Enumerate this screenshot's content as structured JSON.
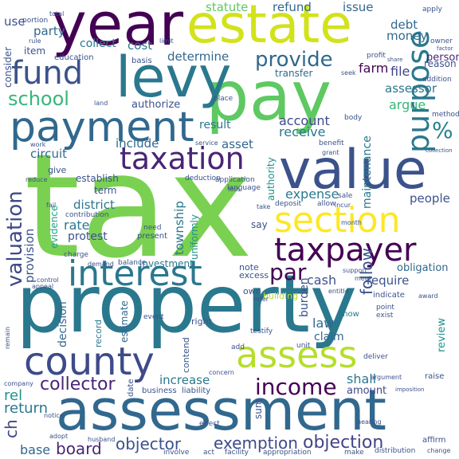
{
  "words": [
    {
      "text": "tax",
      "color": "#7ad151"
    },
    {
      "text": "property",
      "color": "#2a788e"
    },
    {
      "text": "assessment",
      "color": "#31688e"
    },
    {
      "text": "pay",
      "color": "#5ec962"
    },
    {
      "text": "year",
      "color": "#440154"
    },
    {
      "text": "estate",
      "color": "#d2e21b"
    },
    {
      "text": "levy",
      "color": "#2a788e"
    },
    {
      "text": "value",
      "color": "#3b528b"
    },
    {
      "text": "payment",
      "color": "#31688e"
    },
    {
      "text": "taxation",
      "color": "#482576"
    },
    {
      "text": "fund",
      "color": "#3b528b"
    },
    {
      "text": "interest",
      "color": "#2a788e"
    },
    {
      "text": "section",
      "color": "#fde725"
    },
    {
      "text": "county",
      "color": "#3e4a89"
    },
    {
      "text": "assess",
      "color": "#b5de2b"
    },
    {
      "text": "taxpayer",
      "color": "#440154"
    },
    {
      "text": "purpose",
      "color": "#2a788e"
    },
    {
      "text": "income",
      "color": "#440154"
    },
    {
      "text": "school",
      "color": "#35b779"
    },
    {
      "text": "provide",
      "color": "#31688e"
    },
    {
      "text": "%",
      "color": "#26828e"
    },
    {
      "text": "valuation",
      "color": "#3e4a89"
    },
    {
      "text": "par",
      "color": "#440154"
    },
    {
      "text": "collector",
      "color": "#482576"
    },
    {
      "text": "objector",
      "color": "#3b528b"
    },
    {
      "text": "exemption",
      "color": "#3e4a89"
    },
    {
      "text": "board",
      "color": "#482576"
    },
    {
      "text": "objection",
      "color": "#414487"
    },
    {
      "text": "return",
      "color": "#2a788e"
    },
    {
      "text": "base",
      "color": "#31688e"
    },
    {
      "text": "ch",
      "color": "#414487"
    },
    {
      "text": "rel",
      "color": "#21918c"
    },
    {
      "text": "statute",
      "color": "#5ec962"
    },
    {
      "text": "refund",
      "color": "#31688e"
    },
    {
      "text": "issue",
      "color": "#31688e"
    },
    {
      "text": "party",
      "color": "#31688e"
    },
    {
      "text": "collect",
      "color": "#2a788e"
    },
    {
      "text": "cost",
      "color": "#2a788e"
    },
    {
      "text": "determine",
      "color": "#31688e"
    },
    {
      "text": "debt",
      "color": "#31688e"
    },
    {
      "text": "money",
      "color": "#31688e"
    },
    {
      "text": "file",
      "color": "#414487"
    },
    {
      "text": "farm",
      "color": "#440154"
    },
    {
      "text": "assessor",
      "color": "#2a788e"
    },
    {
      "text": "argue",
      "color": "#35b779"
    },
    {
      "text": "person",
      "color": "#482576"
    },
    {
      "text": "account",
      "color": "#3e4a89"
    },
    {
      "text": "receive",
      "color": "#2a788e"
    },
    {
      "text": "asset",
      "color": "#31688e"
    },
    {
      "text": "result",
      "color": "#2a788e"
    },
    {
      "text": "include",
      "color": "#31688e"
    },
    {
      "text": "circuit",
      "color": "#31688e"
    },
    {
      "text": "district",
      "color": "#2a788e"
    },
    {
      "text": "rate",
      "color": "#2a788e"
    },
    {
      "text": "protest",
      "color": "#3b528b"
    },
    {
      "text": "township",
      "color": "#2a788e"
    },
    {
      "text": "expense",
      "color": "#2a788e"
    },
    {
      "text": "people",
      "color": "#3b528b"
    },
    {
      "text": "maintenance",
      "color": "#2a788e"
    },
    {
      "text": "provision",
      "color": "#3b528b"
    },
    {
      "text": "evidence",
      "color": "#20a486"
    },
    {
      "text": "uniformly",
      "color": "#21918c"
    },
    {
      "text": "authority",
      "color": "#21918c"
    },
    {
      "text": "cash",
      "color": "#3b528b"
    },
    {
      "text": "require",
      "color": "#3b528b"
    },
    {
      "text": "burden",
      "color": "#3b528b"
    },
    {
      "text": "law",
      "color": "#31688e"
    },
    {
      "text": "claim",
      "color": "#31688e"
    },
    {
      "text": "follow",
      "color": "#3b528b"
    },
    {
      "text": "review",
      "color": "#21918c"
    },
    {
      "text": "obligation",
      "color": "#31688e"
    },
    {
      "text": "increase",
      "color": "#2a788e"
    },
    {
      "text": "decision",
      "color": "#31688e"
    },
    {
      "text": "estimate",
      "color": "#31688e"
    },
    {
      "text": "shall",
      "color": "#2a788e"
    },
    {
      "text": "amount",
      "color": "#3e4a89"
    },
    {
      "text": "investment",
      "color": "#2a788e"
    },
    {
      "text": "contend",
      "color": "#3b528b"
    },
    {
      "text": "record",
      "color": "#2a788e"
    },
    {
      "text": "right",
      "color": "#3b528b"
    },
    {
      "text": "show",
      "color": "#2a788e"
    },
    {
      "text": "own",
      "color": "#3b528b"
    },
    {
      "text": "building",
      "color": "#b5de2b"
    },
    {
      "text": "excess",
      "color": "#3b528b"
    },
    {
      "text": "note",
      "color": "#3b528b"
    },
    {
      "text": "say",
      "color": "#3b528b"
    },
    {
      "text": "give",
      "color": "#3b528b"
    },
    {
      "text": "term",
      "color": "#3b528b"
    },
    {
      "text": "establish",
      "color": "#3b528b"
    },
    {
      "text": "authorize",
      "color": "#3b528b"
    },
    {
      "text": "transfer",
      "color": "#31688e"
    },
    {
      "text": "education",
      "color": "#3b528b"
    },
    {
      "text": "basis",
      "color": "#3b528b"
    },
    {
      "text": "item",
      "color": "#3b528b"
    },
    {
      "text": "use",
      "color": "#3b528b"
    },
    {
      "text": "consider",
      "color": "#3b528b"
    },
    {
      "text": "business",
      "color": "#3b528b"
    },
    {
      "text": "liability",
      "color": "#3b528b"
    },
    {
      "text": "present",
      "color": "#3b528b"
    },
    {
      "text": "need",
      "color": "#3b528b"
    },
    {
      "text": "contribution",
      "color": "#3b528b"
    },
    {
      "text": "point",
      "color": "#3b528b"
    },
    {
      "text": "exist",
      "color": "#3b528b"
    },
    {
      "text": "indicate",
      "color": "#3b528b"
    },
    {
      "text": "event",
      "color": "#3b528b"
    },
    {
      "text": "sum",
      "color": "#3b528b"
    },
    {
      "text": "date",
      "color": "#3b528b"
    },
    {
      "text": "raise",
      "color": "#3b528b"
    },
    {
      "text": "apply",
      "color": "#3b528b"
    },
    {
      "text": "profit",
      "color": "#3b528b"
    },
    {
      "text": "owner",
      "color": "#3b528b"
    },
    {
      "text": "reason",
      "color": "#3b528b"
    },
    {
      "text": "method",
      "color": "#3b528b"
    },
    {
      "text": "addition",
      "color": "#3b528b"
    },
    {
      "text": "deposit",
      "color": "#3b528b"
    },
    {
      "text": "allow",
      "color": "#3b528b"
    },
    {
      "text": "sale",
      "color": "#3b528b"
    },
    {
      "text": "language",
      "color": "#3b528b"
    },
    {
      "text": "effect",
      "color": "#3b528b"
    },
    {
      "text": "affirm",
      "color": "#3b528b"
    },
    {
      "text": "distribution",
      "color": "#3b528b"
    },
    {
      "text": "act",
      "color": "#3b528b"
    },
    {
      "text": "make",
      "color": "#3b528b"
    },
    {
      "text": "involve",
      "color": "#3b528b"
    },
    {
      "text": "adopt",
      "color": "#3b528b"
    },
    {
      "text": "notice",
      "color": "#3b528b"
    },
    {
      "text": "appropriation",
      "color": "#3b528b"
    },
    {
      "text": "facility",
      "color": "#3b528b"
    },
    {
      "text": "hearing",
      "color": "#3b528b"
    },
    {
      "text": "husband",
      "color": "#3b528b"
    },
    {
      "text": "deliver",
      "color": "#3b528b"
    },
    {
      "text": "imposition",
      "color": "#3b528b"
    },
    {
      "text": "argument",
      "color": "#3b528b"
    },
    {
      "text": "company",
      "color": "#3b528b"
    },
    {
      "text": "concern",
      "color": "#3b528b"
    },
    {
      "text": "testify",
      "color": "#3b528b"
    },
    {
      "text": "add",
      "color": "#3b528b"
    },
    {
      "text": "unit",
      "color": "#3b528b"
    },
    {
      "text": "award",
      "color": "#3b528b"
    },
    {
      "text": "entitle",
      "color": "#3b528b"
    },
    {
      "text": "refer",
      "color": "#3b528b"
    },
    {
      "text": "meet",
      "color": "#3b528b"
    },
    {
      "text": "support",
      "color": "#3b528b"
    },
    {
      "text": "body",
      "color": "#3b528b"
    },
    {
      "text": "place",
      "color": "#3b528b"
    },
    {
      "text": "land",
      "color": "#3b528b"
    },
    {
      "text": "service",
      "color": "#3b528b"
    },
    {
      "text": "benefit",
      "color": "#3b528b"
    },
    {
      "text": "deduction",
      "color": "#3b528b"
    },
    {
      "text": "application",
      "color": "#3b528b"
    },
    {
      "text": "month",
      "color": "#3b528b"
    },
    {
      "text": "incur",
      "color": "#3b528b"
    },
    {
      "text": "take",
      "color": "#3b528b"
    },
    {
      "text": "charge",
      "color": "#3b528b"
    },
    {
      "text": "demand",
      "color": "#3b528b"
    },
    {
      "text": "balance",
      "color": "#3b528b"
    },
    {
      "text": "control",
      "color": "#3b528b"
    },
    {
      "text": "total",
      "color": "#3b528b"
    },
    {
      "text": "portion",
      "color": "#3b528b"
    },
    {
      "text": "rule",
      "color": "#3b528b"
    },
    {
      "text": "limit",
      "color": "#3b528b"
    },
    {
      "text": "work",
      "color": "#3b528b"
    },
    {
      "text": "reduce",
      "color": "#3b528b"
    },
    {
      "text": "fail",
      "color": "#3b528b"
    },
    {
      "text": "remain",
      "color": "#3b528b"
    },
    {
      "text": "change",
      "color": "#3b528b"
    },
    {
      "text": "seek",
      "color": "#3b528b"
    },
    {
      "text": "factor",
      "color": "#3b528b"
    },
    {
      "text": "share",
      "color": "#3b528b"
    },
    {
      "text": "collection",
      "color": "#3b528b"
    },
    {
      "text": "loss",
      "color": "#3b528b"
    },
    {
      "text": "appeal",
      "color": "#3b528b"
    },
    {
      "text": "grant",
      "color": "#3b528b"
    }
  ]
}
